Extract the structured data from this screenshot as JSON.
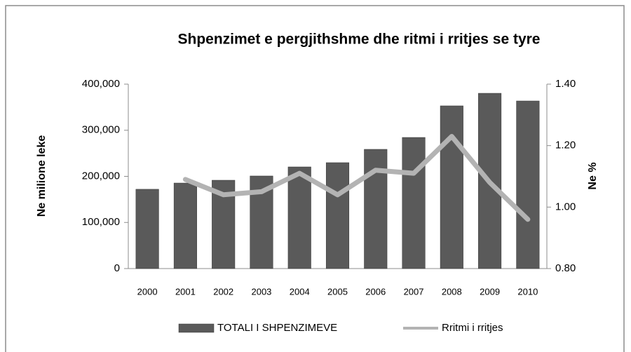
{
  "chart_data": {
    "type": "bar",
    "title": "Shpenzimet e pergjithshme dhe ritmi i rritjes se tyre",
    "y_label": "Ne milione leke",
    "y2_label": "Ne %",
    "categories": [
      "2000",
      "2001",
      "2002",
      "2003",
      "2004",
      "2005",
      "2006",
      "2007",
      "2008",
      "2009",
      "2010"
    ],
    "series": [
      {
        "name": "TOTALI I SHPENZIMEVE",
        "type": "bar",
        "color": "#5a5a5a",
        "values": [
          172000,
          185500,
          191600,
          200800,
          220500,
          229700,
          258600,
          284400,
          352900,
          380200,
          363500
        ]
      },
      {
        "name": "Rritmi i rritjes",
        "type": "line",
        "axis": "y2",
        "color": "#b3b3b3",
        "values": [
          null,
          1.09,
          1.04,
          1.05,
          1.11,
          1.04,
          1.12,
          1.11,
          1.23,
          1.08,
          0.96
        ]
      }
    ],
    "ylim": [
      0,
      400000
    ],
    "yticks": [
      0,
      {
        "value": 100000,
        "label": "100,000"
      },
      {
        "value": 200000,
        "label": "200,000"
      },
      {
        "value": 300000,
        "label": "300,000"
      },
      {
        "value": 400000,
        "label": "400,000"
      }
    ],
    "y2lim": [
      0.8,
      1.4
    ],
    "y2ticks": [
      {
        "value": 0.8,
        "label": "0.80"
      },
      {
        "value": 1.0,
        "label": "1.00"
      },
      {
        "value": 1.2,
        "label": "1.20"
      },
      {
        "value": 1.4,
        "label": "1.40"
      }
    ],
    "grid": false,
    "legend": "bottom"
  }
}
